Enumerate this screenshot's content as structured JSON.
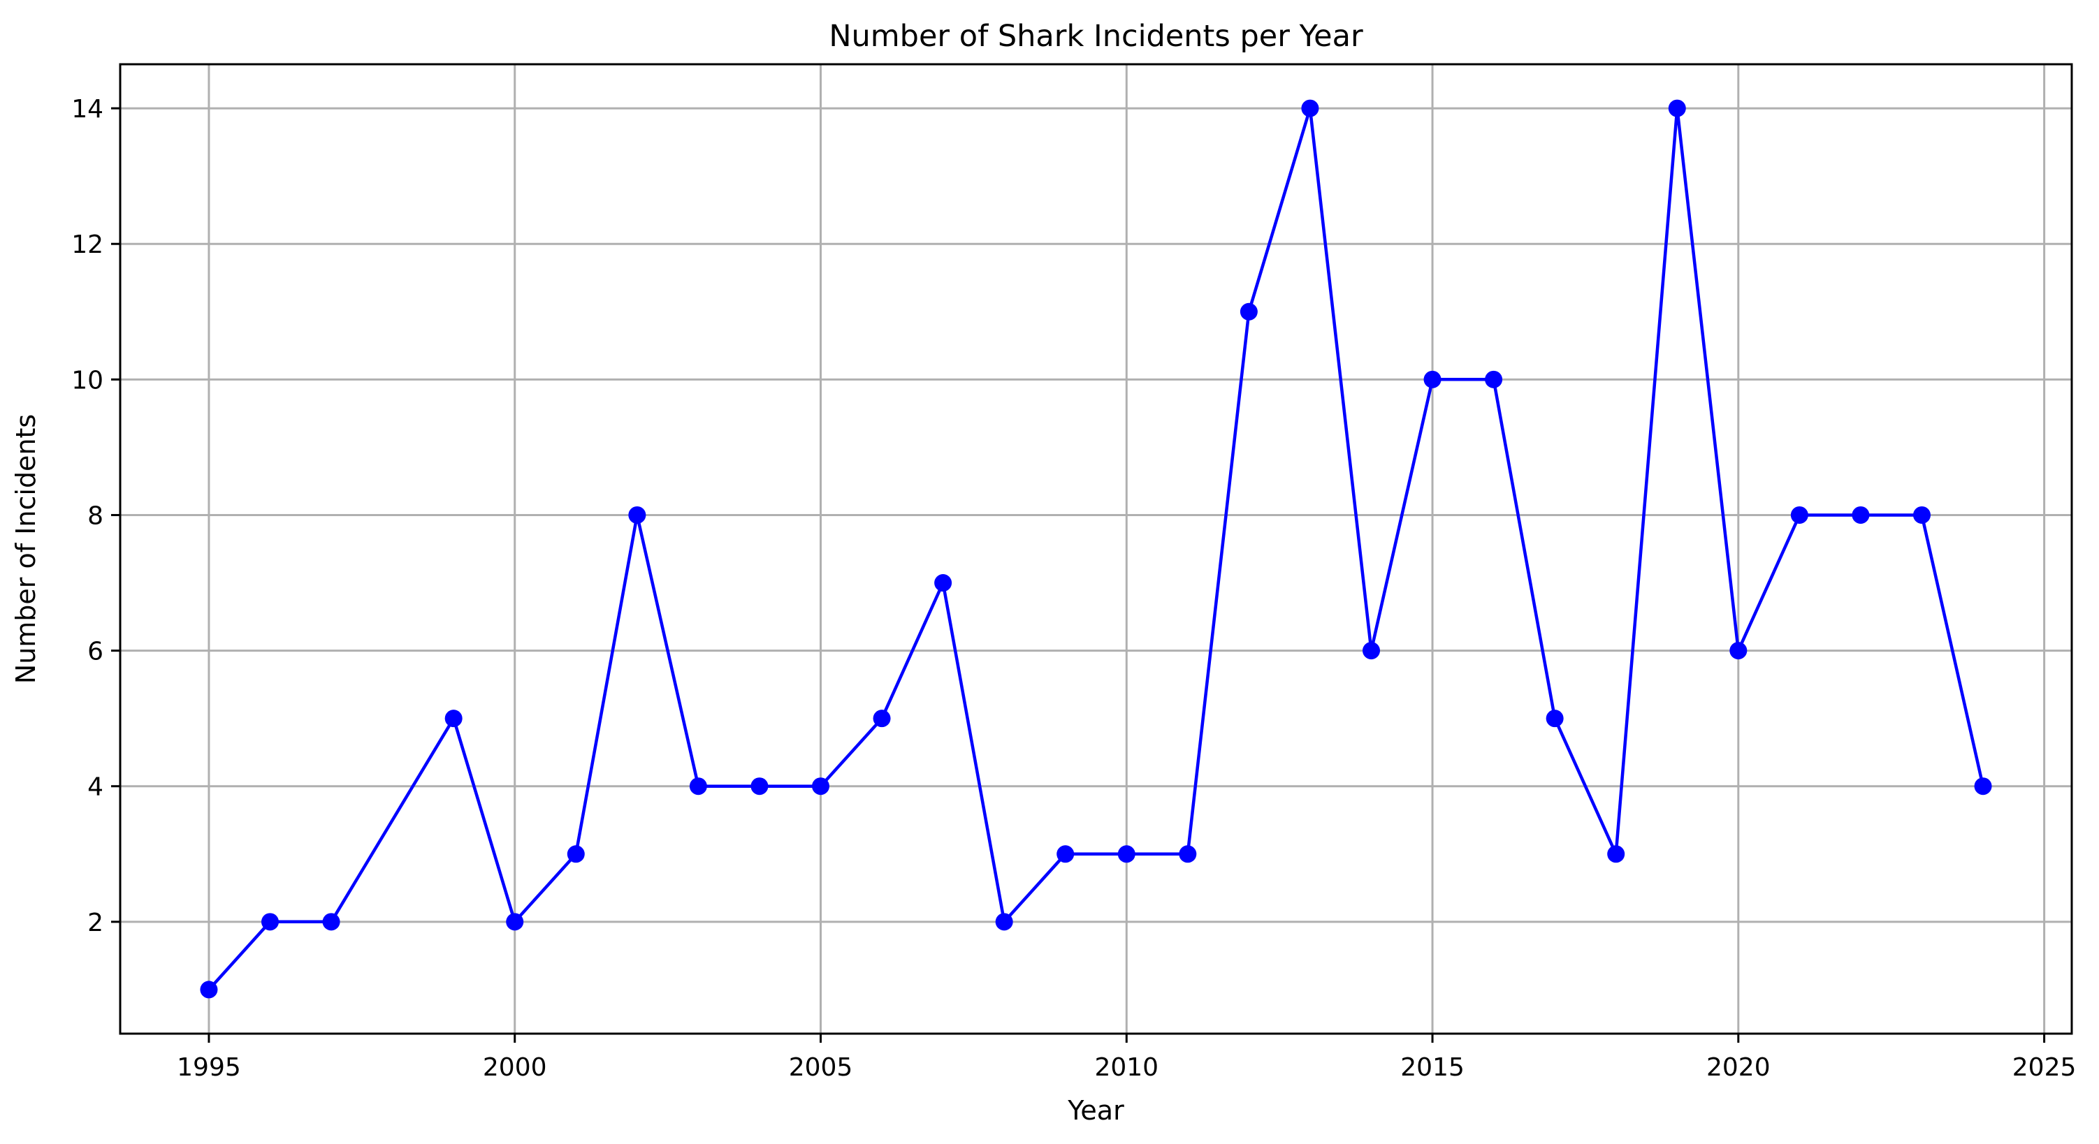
{
  "chart_data": {
    "type": "line",
    "title": "Number of Shark Incidents per Year",
    "xlabel": "Year",
    "ylabel": "Number of Incidents",
    "xlim": [
      1993.55,
      2025.45
    ],
    "ylim": [
      0.35,
      14.65
    ],
    "xticks": [
      1995,
      2000,
      2005,
      2010,
      2015,
      2020,
      2025
    ],
    "yticks": [
      2,
      4,
      6,
      8,
      10,
      12,
      14
    ],
    "grid": true,
    "series": [
      {
        "color": "#0000ff",
        "marker": "circle",
        "x": [
          1995,
          1996,
          1997,
          1999,
          2000,
          2001,
          2002,
          2003,
          2004,
          2005,
          2006,
          2007,
          2008,
          2009,
          2010,
          2011,
          2012,
          2013,
          2014,
          2015,
          2016,
          2017,
          2018,
          2019,
          2020,
          2021,
          2022,
          2023,
          2024
        ],
        "y": [
          1,
          2,
          2,
          5,
          2,
          3,
          8,
          4,
          4,
          4,
          5,
          7,
          2,
          3,
          3,
          3,
          11,
          14,
          6,
          10,
          10,
          5,
          3,
          14,
          6,
          8,
          8,
          8,
          4
        ]
      }
    ]
  }
}
